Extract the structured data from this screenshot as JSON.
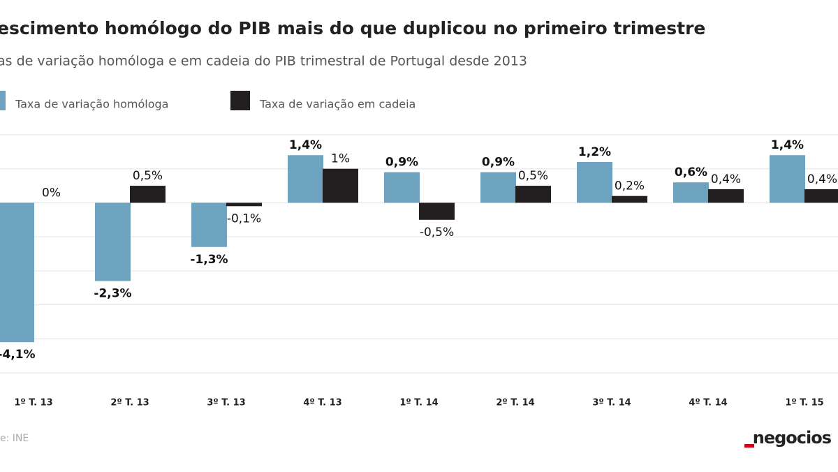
{
  "chart_data": {
    "type": "bar",
    "title": "escimento homólogo do PIB mais do que duplicou no primeiro trimestre",
    "subtitle": "as de variação homóloga e em cadeia do PIB trimestral de Portugal desde 2013",
    "categories": [
      "1º T. 13",
      "2º T. 13",
      "3º T. 13",
      "4º T. 13",
      "1º T. 14",
      "2º T. 14",
      "3º T. 14",
      "4º T. 14",
      "1º T. 15"
    ],
    "series": [
      {
        "name": "Taxa de variação homóloga",
        "color": "#6ea3bf",
        "values": [
          -4.1,
          -2.3,
          -1.3,
          1.4,
          0.9,
          0.9,
          1.2,
          0.6,
          1.4
        ],
        "value_labels": [
          "-4,1%",
          "-2,3%",
          "-1,3%",
          "1,4%",
          "0,9%",
          "0,9%",
          "1,2%",
          "0,6%",
          "1,4%"
        ]
      },
      {
        "name": "Taxa de variação em cadeia",
        "color": "#231f20",
        "values": [
          0,
          0.5,
          -0.1,
          1,
          -0.5,
          0.5,
          0.2,
          0.4,
          0.4
        ],
        "value_labels": [
          "0%",
          "0,5%",
          "-0,1%",
          "1%",
          "-0,5%",
          "0,5%",
          "0,2%",
          "0,4%",
          "0,4%"
        ]
      }
    ],
    "ylim": [
      -5,
      2
    ],
    "yticks": [
      -5,
      -4,
      -3,
      -2,
      -1,
      0,
      1,
      2
    ],
    "grid": true,
    "source": "e: INE",
    "logo": "negocios"
  }
}
